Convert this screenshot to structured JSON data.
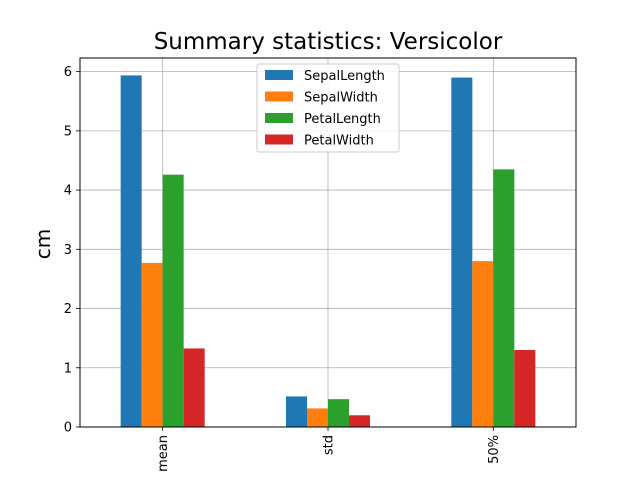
{
  "chart_data": {
    "type": "bar",
    "title": "Summary statistics: Versicolor",
    "xlabel": "",
    "ylabel": "cm",
    "categories": [
      "mean",
      "std",
      "50%"
    ],
    "series": [
      {
        "name": "SepalLength",
        "color": "#1f77b4",
        "values": [
          5.936,
          0.516,
          5.9
        ]
      },
      {
        "name": "SepalWidth",
        "color": "#ff7f0e",
        "values": [
          2.77,
          0.314,
          2.8
        ]
      },
      {
        "name": "PetalLength",
        "color": "#2ca02c",
        "values": [
          4.26,
          0.47,
          4.35
        ]
      },
      {
        "name": "PetalWidth",
        "color": "#d62728",
        "values": [
          1.326,
          0.198,
          1.3
        ]
      }
    ],
    "ylim": [
      0,
      6.23
    ],
    "yticks": [
      "0",
      "1",
      "2",
      "3",
      "4",
      "5",
      "6"
    ],
    "grid": true,
    "legend_position": "top-center",
    "xtick_rotation": "vertical"
  }
}
